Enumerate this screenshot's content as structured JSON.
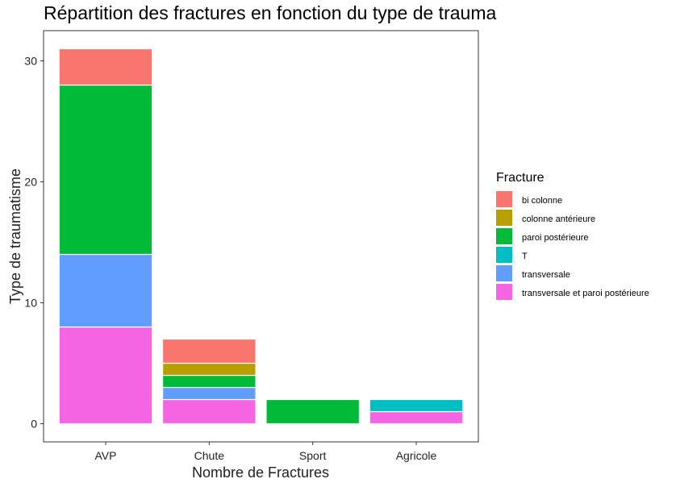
{
  "chart_data": {
    "type": "bar",
    "stacked": true,
    "title": "Répartition des fractures en fonction du type de trauma",
    "xlabel": "Nombre de Fractures",
    "ylabel": "Type de traumatisme",
    "categories": [
      "AVP",
      "Chute",
      "Sport",
      "Agricole"
    ],
    "ylim": [
      -1.5,
      32.5
    ],
    "yticks": [
      0,
      10,
      20,
      30
    ],
    "grid": false,
    "legend": {
      "title": "Fracture",
      "placement": "right"
    },
    "series": [
      {
        "name": "bi colonne",
        "color": "#F8766D",
        "values": [
          3,
          2,
          0,
          0
        ]
      },
      {
        "name": "colonne antérieure",
        "color": "#B79F00",
        "values": [
          0,
          1,
          0,
          0
        ]
      },
      {
        "name": "paroi postérieure",
        "color": "#00BA38",
        "values": [
          14,
          1,
          2,
          0
        ]
      },
      {
        "name": "T",
        "color": "#00BFC4",
        "values": [
          0,
          0,
          0,
          1
        ]
      },
      {
        "name": "transversale",
        "color": "#619CFF",
        "values": [
          6,
          1,
          0,
          0
        ]
      },
      {
        "name": "transversale et paroi postérieure",
        "color": "#F564E3",
        "values": [
          8,
          2,
          0,
          1
        ]
      }
    ]
  }
}
